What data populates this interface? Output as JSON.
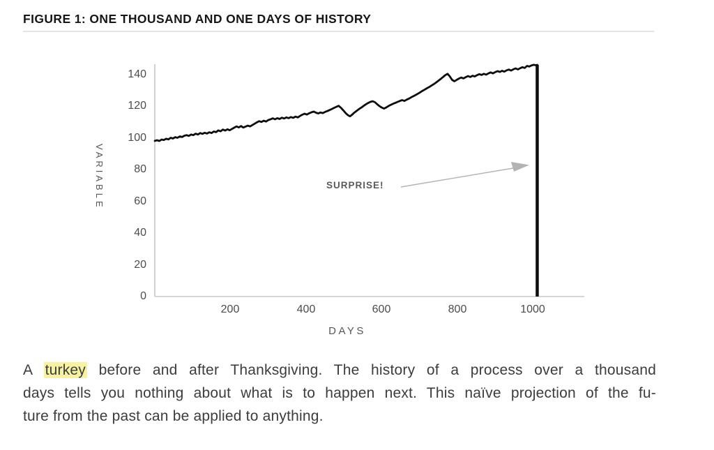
{
  "figure": {
    "title": "FIGURE 1: ONE THOUSAND AND ONE DAYS OF HISTORY"
  },
  "chart_data": {
    "type": "line",
    "title": "FIGURE 1: ONE THOUSAND AND ONE DAYS OF HISTORY",
    "xlabel": "DAYS",
    "ylabel": "VARIABLE",
    "xlim": [
      0,
      1135
    ],
    "ylim": [
      0,
      150
    ],
    "grid": false,
    "legend": false,
    "xticks": [
      "200",
      "400",
      "600",
      "800",
      "1000"
    ],
    "xtick_values": [
      200,
      400,
      600,
      800,
      1000
    ],
    "yticks": [
      "140",
      "120",
      "100",
      "80",
      "60",
      "40",
      "20",
      "0"
    ],
    "ytick_values": [
      140,
      120,
      100,
      80,
      60,
      40,
      20,
      0
    ],
    "annotation": {
      "text": "SURPRISE!"
    },
    "drop": {
      "day": 1011,
      "from_value": 146.3,
      "to_value": 0
    },
    "colors": {
      "line": "#0d0d0d",
      "axis": "#c7c7c7",
      "arrow": "#b3b3b3",
      "tick_text": "#4c4c4c",
      "highlight": "#f6f1a3"
    },
    "series": [
      {
        "name": "history",
        "points": [
          [
            0,
            98.3
          ],
          [
            6,
            98.7
          ],
          [
            12,
            98.2
          ],
          [
            18,
            99.1
          ],
          [
            24,
            98.8
          ],
          [
            30,
            99.6
          ],
          [
            36,
            99.2
          ],
          [
            42,
            100.2
          ],
          [
            48,
            99.8
          ],
          [
            54,
            100.6
          ],
          [
            60,
            100.2
          ],
          [
            66,
            101.1
          ],
          [
            72,
            100.7
          ],
          [
            78,
            101.5
          ],
          [
            84,
            101.9
          ],
          [
            90,
            101.4
          ],
          [
            96,
            102.3
          ],
          [
            102,
            101.9
          ],
          [
            108,
            102.8
          ],
          [
            114,
            102.3
          ],
          [
            120,
            103.2
          ],
          [
            126,
            102.7
          ],
          [
            132,
            103.4
          ],
          [
            138,
            102.9
          ],
          [
            144,
            103.7
          ],
          [
            150,
            103.2
          ],
          [
            156,
            104.2
          ],
          [
            162,
            103.8
          ],
          [
            168,
            104.9
          ],
          [
            174,
            104.3
          ],
          [
            180,
            105.4
          ],
          [
            186,
            104.8
          ],
          [
            192,
            105.6
          ],
          [
            198,
            105.0
          ],
          [
            204,
            105.8
          ],
          [
            210,
            106.6
          ],
          [
            216,
            107.4
          ],
          [
            222,
            106.8
          ],
          [
            228,
            107.6
          ],
          [
            234,
            106.7
          ],
          [
            240,
            107.3
          ],
          [
            246,
            107.9
          ],
          [
            252,
            107.4
          ],
          [
            258,
            108.3
          ],
          [
            264,
            109.1
          ],
          [
            270,
            110.0
          ],
          [
            276,
            110.7
          ],
          [
            282,
            110.2
          ],
          [
            288,
            111.0
          ],
          [
            294,
            110.5
          ],
          [
            300,
            111.4
          ],
          [
            306,
            111.9
          ],
          [
            312,
            112.5
          ],
          [
            318,
            111.9
          ],
          [
            324,
            112.6
          ],
          [
            330,
            112.1
          ],
          [
            336,
            112.9
          ],
          [
            342,
            112.4
          ],
          [
            348,
            113.1
          ],
          [
            354,
            112.6
          ],
          [
            360,
            113.3
          ],
          [
            366,
            112.8
          ],
          [
            372,
            113.6
          ],
          [
            378,
            113.1
          ],
          [
            384,
            114.0
          ],
          [
            390,
            114.8
          ],
          [
            396,
            115.4
          ],
          [
            402,
            114.9
          ],
          [
            408,
            115.7
          ],
          [
            414,
            116.3
          ],
          [
            420,
            116.8
          ],
          [
            426,
            116.1
          ],
          [
            432,
            115.6
          ],
          [
            438,
            116.2
          ],
          [
            444,
            115.8
          ],
          [
            450,
            116.5
          ],
          [
            456,
            117.1
          ],
          [
            462,
            117.7
          ],
          [
            468,
            118.4
          ],
          [
            474,
            119.1
          ],
          [
            480,
            119.8
          ],
          [
            486,
            120.4
          ],
          [
            492,
            119.2
          ],
          [
            498,
            117.6
          ],
          [
            504,
            116.0
          ],
          [
            510,
            114.6
          ],
          [
            516,
            113.8
          ],
          [
            522,
            114.9
          ],
          [
            528,
            116.2
          ],
          [
            534,
            117.3
          ],
          [
            540,
            118.4
          ],
          [
            546,
            119.3
          ],
          [
            552,
            120.4
          ],
          [
            558,
            121.3
          ],
          [
            564,
            122.2
          ],
          [
            570,
            122.9
          ],
          [
            576,
            123.3
          ],
          [
            582,
            122.7
          ],
          [
            588,
            121.4
          ],
          [
            594,
            120.2
          ],
          [
            600,
            119.3
          ],
          [
            606,
            118.7
          ],
          [
            612,
            119.4
          ],
          [
            618,
            120.3
          ],
          [
            624,
            121.0
          ],
          [
            630,
            121.7
          ],
          [
            636,
            122.3
          ],
          [
            642,
            122.9
          ],
          [
            648,
            123.5
          ],
          [
            654,
            124.0
          ],
          [
            660,
            123.5
          ],
          [
            666,
            124.3
          ],
          [
            672,
            125.0
          ],
          [
            678,
            125.8
          ],
          [
            684,
            126.5
          ],
          [
            690,
            127.3
          ],
          [
            696,
            128.1
          ],
          [
            702,
            129.0
          ],
          [
            708,
            129.9
          ],
          [
            714,
            130.7
          ],
          [
            720,
            131.6
          ],
          [
            726,
            132.4
          ],
          [
            732,
            133.3
          ],
          [
            738,
            134.2
          ],
          [
            744,
            135.2
          ],
          [
            750,
            136.3
          ],
          [
            756,
            137.4
          ],
          [
            762,
            138.6
          ],
          [
            768,
            139.8
          ],
          [
            774,
            140.6
          ],
          [
            780,
            139.0
          ],
          [
            786,
            136.8
          ],
          [
            792,
            135.9
          ],
          [
            798,
            136.8
          ],
          [
            804,
            137.6
          ],
          [
            810,
            138.3
          ],
          [
            816,
            137.7
          ],
          [
            822,
            138.5
          ],
          [
            828,
            139.2
          ],
          [
            834,
            138.6
          ],
          [
            840,
            139.4
          ],
          [
            846,
            139.0
          ],
          [
            852,
            139.8
          ],
          [
            858,
            140.4
          ],
          [
            864,
            139.9
          ],
          [
            870,
            140.6
          ],
          [
            876,
            140.1
          ],
          [
            882,
            140.9
          ],
          [
            888,
            141.5
          ],
          [
            894,
            140.9
          ],
          [
            900,
            141.7
          ],
          [
            906,
            142.3
          ],
          [
            912,
            141.8
          ],
          [
            918,
            142.5
          ],
          [
            924,
            142.0
          ],
          [
            930,
            142.8
          ],
          [
            936,
            143.3
          ],
          [
            942,
            142.7
          ],
          [
            948,
            143.5
          ],
          [
            954,
            144.0
          ],
          [
            960,
            143.4
          ],
          [
            966,
            144.2
          ],
          [
            972,
            144.8
          ],
          [
            978,
            144.3
          ],
          [
            984,
            145.6
          ],
          [
            990,
            145.2
          ],
          [
            996,
            145.9
          ],
          [
            1002,
            146.3
          ],
          [
            1008,
            146.0
          ],
          [
            1011,
            146.3
          ]
        ]
      }
    ]
  },
  "caption": {
    "line1_prefix": "A ",
    "line1_highlight": "turkey",
    "line1_rest": " before and after Thanksgiving. The history of a process over a thousand",
    "line2": "days tells you nothing about what is to happen next. This naïve projection of the fu-",
    "line3": "ture from the past can be applied to anything."
  }
}
